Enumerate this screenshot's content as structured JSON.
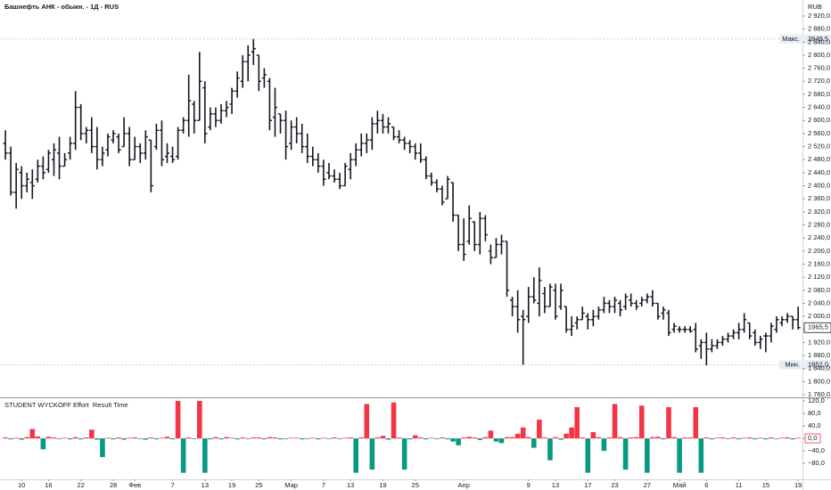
{
  "chart_data": [
    {
      "type": "ohlc",
      "title": "Башнефть АНК - обыкн. - 1Д - RUS",
      "currency": "RUB",
      "color": "#131722",
      "open": [
        2530,
        2500,
        2380,
        2440,
        2400,
        2410,
        2420,
        2460,
        2450,
        2480,
        2500,
        2460,
        2500,
        2530,
        2640,
        2560,
        2570,
        2520,
        2480,
        2510,
        2540,
        2550,
        2520,
        2560,
        2480,
        2520,
        2500,
        2540,
        2520,
        2570,
        2490,
        2490,
        2490,
        2570,
        2600,
        2650,
        2600,
        2700,
        2580,
        2620,
        2600,
        2630,
        2650,
        2690,
        2720,
        2780,
        2810,
        2800,
        2730,
        2720,
        2610,
        2620,
        2600,
        2530,
        2580,
        2560,
        2520,
        2490,
        2480,
        2460,
        2440,
        2430,
        2420,
        2400,
        2450,
        2480,
        2510,
        2530,
        2540,
        2590,
        2600,
        2580,
        2580,
        2550,
        2540,
        2530,
        2520,
        2500,
        2480,
        2430,
        2410,
        2390,
        2360,
        2410,
        2310,
        2220,
        2230,
        2290,
        2220,
        2300,
        2200,
        2180,
        2220,
        2230,
        2050,
        2030,
        2000,
        2000,
        2060,
        2040,
        2070,
        2030,
        2080,
        2030,
        2030,
        1960,
        1980,
        1990,
        2000,
        1990,
        2000,
        2020,
        2040,
        2030,
        2040,
        2030,
        2050,
        2040,
        2040,
        2050,
        2060,
        2040,
        2010,
        2010,
        1960,
        1960,
        1960,
        1960,
        1960,
        1910,
        1920,
        1900,
        1910,
        1920,
        1930,
        1940,
        1950,
        1960,
        1980,
        1950,
        1920,
        1940,
        1940,
        1960,
        1980,
        1990,
        2000,
        1990
      ],
      "high": [
        2570,
        2520,
        2470,
        2460,
        2440,
        2450,
        2480,
        2490,
        2510,
        2530,
        2550,
        2500,
        2550,
        2690,
        2650,
        2580,
        2610,
        2580,
        2520,
        2560,
        2570,
        2560,
        2610,
        2580,
        2550,
        2530,
        2570,
        2540,
        2590,
        2600,
        2530,
        2520,
        2580,
        2610,
        2740,
        2660,
        2810,
        2720,
        2640,
        2640,
        2650,
        2660,
        2700,
        2750,
        2800,
        2830,
        2849.5,
        2800,
        2760,
        2730,
        2700,
        2620,
        2630,
        2600,
        2610,
        2590,
        2560,
        2520,
        2500,
        2480,
        2470,
        2450,
        2440,
        2470,
        2500,
        2530,
        2560,
        2560,
        2610,
        2630,
        2620,
        2610,
        2580,
        2570,
        2550,
        2540,
        2530,
        2530,
        2490,
        2440,
        2420,
        2400,
        2430,
        2410,
        2310,
        2300,
        2340,
        2290,
        2320,
        2310,
        2220,
        2240,
        2250,
        2230,
        2060,
        2080,
        2020,
        2090,
        2120,
        2150,
        2090,
        2100,
        2100,
        2100,
        2030,
        2000,
        2000,
        2030,
        2010,
        2020,
        2030,
        2060,
        2050,
        2060,
        2050,
        2070,
        2070,
        2050,
        2060,
        2070,
        2080,
        2040,
        2030,
        2020,
        1980,
        1970,
        1970,
        1970,
        1980,
        1930,
        1950,
        1930,
        1930,
        1940,
        1950,
        1960,
        1980,
        2010,
        1980,
        1960,
        1940,
        1950,
        1980,
        2000,
        2000,
        2010,
        2000,
        2030
      ],
      "low": [
        2480,
        2370,
        2330,
        2360,
        2380,
        2360,
        2410,
        2420,
        2440,
        2430,
        2420,
        2460,
        2480,
        2510,
        2540,
        2530,
        2500,
        2450,
        2460,
        2490,
        2530,
        2500,
        2520,
        2460,
        2480,
        2470,
        2480,
        2380,
        2510,
        2460,
        2470,
        2470,
        2480,
        2560,
        2550,
        2560,
        2600,
        2530,
        2570,
        2580,
        2590,
        2610,
        2620,
        2670,
        2700,
        2720,
        2770,
        2690,
        2700,
        2570,
        2550,
        2560,
        2480,
        2510,
        2530,
        2500,
        2470,
        2460,
        2440,
        2400,
        2420,
        2410,
        2390,
        2400,
        2420,
        2460,
        2490,
        2500,
        2510,
        2560,
        2560,
        2560,
        2540,
        2530,
        2510,
        2500,
        2480,
        2470,
        2420,
        2400,
        2380,
        2340,
        2360,
        2290,
        2200,
        2170,
        2220,
        2200,
        2190,
        2230,
        2160,
        2180,
        2190,
        2060,
        2000,
        1950,
        1852,
        1980,
        2040,
        2000,
        2010,
        2030,
        1990,
        2020,
        1950,
        1940,
        1960,
        1990,
        1960,
        1970,
        1990,
        2010,
        2010,
        2010,
        2000,
        2020,
        2030,
        2020,
        2030,
        2040,
        2030,
        1990,
        1990,
        1940,
        1950,
        1950,
        1950,
        1950,
        1890,
        1870,
        1850,
        1890,
        1900,
        1910,
        1920,
        1930,
        1930,
        1950,
        1930,
        1910,
        1900,
        1890,
        1920,
        1950,
        1970,
        1980,
        1960,
        1960
      ],
      "close": [
        2500,
        2380,
        2450,
        2400,
        2420,
        2400,
        2460,
        2440,
        2500,
        2510,
        2460,
        2480,
        2530,
        2640,
        2560,
        2570,
        2520,
        2480,
        2500,
        2550,
        2560,
        2510,
        2560,
        2480,
        2520,
        2500,
        2550,
        2400,
        2570,
        2480,
        2500,
        2480,
        2570,
        2600,
        2660,
        2600,
        2720,
        2560,
        2620,
        2600,
        2630,
        2640,
        2690,
        2730,
        2780,
        2800,
        2820,
        2720,
        2740,
        2600,
        2640,
        2600,
        2520,
        2580,
        2560,
        2520,
        2490,
        2480,
        2460,
        2420,
        2430,
        2420,
        2400,
        2460,
        2480,
        2510,
        2530,
        2540,
        2590,
        2600,
        2580,
        2590,
        2550,
        2540,
        2530,
        2520,
        2500,
        2480,
        2430,
        2410,
        2390,
        2350,
        2420,
        2310,
        2220,
        2190,
        2300,
        2220,
        2300,
        2250,
        2180,
        2220,
        2230,
        2080,
        2030,
        1990,
        1990,
        2060,
        2050,
        2110,
        2030,
        2090,
        2000,
        2080,
        1960,
        1970,
        1990,
        2010,
        1990,
        2000,
        2020,
        2040,
        2030,
        2050,
        2020,
        2060,
        2040,
        2030,
        2050,
        2060,
        2040,
        2000,
        2020,
        1950,
        1970,
        1960,
        1960,
        1955,
        1900,
        1920,
        1900,
        1910,
        1920,
        1930,
        1940,
        1950,
        1960,
        1990,
        1940,
        1920,
        1930,
        1940,
        1970,
        1990,
        1990,
        2000,
        1990,
        1965.5
      ],
      "xlim": [
        -1,
        147.8
      ],
      "ylim": [
        1752,
        2969
      ],
      "yticks": [
        {
          "value": 2920,
          "label": "2 920,0"
        },
        {
          "value": 2880,
          "label": "2 880,0"
        },
        {
          "value": 2840,
          "label": "2 840,0"
        },
        {
          "value": 2800,
          "label": "2 800,0"
        },
        {
          "value": 2760,
          "label": "2 760,0"
        },
        {
          "value": 2720,
          "label": "2 720,0"
        },
        {
          "value": 2680,
          "label": "2 680,0"
        },
        {
          "value": 2640,
          "label": "2 640,0"
        },
        {
          "value": 2600,
          "label": "2 600,0"
        },
        {
          "value": 2560,
          "label": "2 560,0"
        },
        {
          "value": 2520,
          "label": "2 520,0"
        },
        {
          "value": 2480,
          "label": "2 480,0"
        },
        {
          "value": 2440,
          "label": "2 440,0"
        },
        {
          "value": 2400,
          "label": "2 400,0"
        },
        {
          "value": 2360,
          "label": "2 360,0"
        },
        {
          "value": 2320,
          "label": "2 320,0"
        },
        {
          "value": 2280,
          "label": "2 280,0"
        },
        {
          "value": 2240,
          "label": "2 240,0"
        },
        {
          "value": 2200,
          "label": "2 200,0"
        },
        {
          "value": 2160,
          "label": "2 160,0"
        },
        {
          "value": 2120,
          "label": "2 120,0"
        },
        {
          "value": 2080,
          "label": "2 080,0"
        },
        {
          "value": 2040,
          "label": "2 040,0"
        },
        {
          "value": 2000,
          "label": "2 000,0"
        },
        {
          "value": 1960,
          "label": "1 960,0"
        },
        {
          "value": 1920,
          "label": "1 920,0"
        },
        {
          "value": 1880,
          "label": "1 880,0"
        },
        {
          "value": 1840,
          "label": "1 840,0"
        },
        {
          "value": 1800,
          "label": "1 800,0"
        },
        {
          "value": 1760,
          "label": "1 760,0"
        }
      ],
      "annotations": [
        {
          "label": "Макс.",
          "value": 2849.5,
          "value_label": "2849,5"
        },
        {
          "label": "Мин.",
          "value": 1852,
          "value_label": "1852,0"
        }
      ],
      "last": {
        "value": 1965.5,
        "label": "1965,5"
      }
    },
    {
      "type": "bar",
      "title": "STUDENT WYCKOFF Effort  Result Time",
      "values": [
        3,
        -3,
        2,
        -4,
        4,
        30,
        6,
        -35,
        5,
        3,
        -2,
        2,
        -3,
        4,
        -3,
        3,
        28,
        -4,
        -60,
        2,
        -3,
        3,
        -4,
        2,
        3,
        -2,
        -4,
        3,
        -3,
        2,
        5,
        -3,
        120,
        -110,
        3,
        -2,
        120,
        -110,
        -3,
        4,
        -3,
        4,
        2,
        -3,
        3,
        -2,
        3,
        3,
        -3,
        4,
        3,
        -3,
        -2,
        2,
        2,
        -3,
        -2,
        2,
        -3,
        2,
        -2,
        3,
        -2,
        2,
        3,
        -110,
        3,
        110,
        -100,
        3,
        8,
        -4,
        115,
        3,
        -100,
        -3,
        10,
        3,
        -3,
        2,
        -2,
        3,
        -3,
        -10,
        -22,
        3,
        5,
        3,
        -5,
        4,
        25,
        -10,
        -15,
        4,
        4,
        15,
        35,
        4,
        -30,
        60,
        3,
        -70,
        4,
        -4,
        15,
        35,
        100,
        3,
        -110,
        20,
        4,
        -40,
        3,
        110,
        4,
        -100,
        3,
        4,
        105,
        -110,
        4,
        5,
        -3,
        100,
        4,
        -110,
        3,
        3,
        100,
        -110,
        3,
        -3,
        2,
        3,
        -2,
        3,
        -3,
        2,
        3,
        -3,
        2,
        -3,
        3,
        -2,
        2,
        3,
        -3,
        2
      ],
      "colors": {
        "positive": "#f23645",
        "negative": "#089981"
      },
      "xlim": [
        -1,
        147.8
      ],
      "ylim": [
        -131,
        128.6
      ],
      "yticks": [
        {
          "value": 120,
          "label": "120,0"
        },
        {
          "value": 80,
          "label": "80,0"
        },
        {
          "value": 40,
          "label": "40,0"
        },
        {
          "value": 0,
          "label": "0,0"
        },
        {
          "value": -40,
          "label": "−40,0"
        },
        {
          "value": -80,
          "label": "−80,0"
        }
      ],
      "xticks": [
        {
          "value": 3,
          "label": "10"
        },
        {
          "value": 8,
          "label": "16"
        },
        {
          "value": 14,
          "label": "22"
        },
        {
          "value": 20,
          "label": "28"
        },
        {
          "value": 24,
          "label": "Фев"
        },
        {
          "value": 31,
          "label": "7"
        },
        {
          "value": 37,
          "label": "13"
        },
        {
          "value": 42,
          "label": "19"
        },
        {
          "value": 47,
          "label": "25"
        },
        {
          "value": 53,
          "label": "Мар"
        },
        {
          "value": 59,
          "label": "7"
        },
        {
          "value": 64,
          "label": "13"
        },
        {
          "value": 70,
          "label": "19"
        },
        {
          "value": 76,
          "label": "25"
        },
        {
          "value": 85,
          "label": "Апр"
        },
        {
          "value": 97,
          "label": "9"
        },
        {
          "value": 102,
          "label": "13"
        },
        {
          "value": 108,
          "label": "17"
        },
        {
          "value": 113,
          "label": "23"
        },
        {
          "value": 119,
          "label": "27"
        },
        {
          "value": 125,
          "label": "Май"
        },
        {
          "value": 130,
          "label": "6"
        },
        {
          "value": 136,
          "label": "11"
        },
        {
          "value": 141,
          "label": "15"
        },
        {
          "value": 147,
          "label": "19"
        }
      ]
    }
  ]
}
